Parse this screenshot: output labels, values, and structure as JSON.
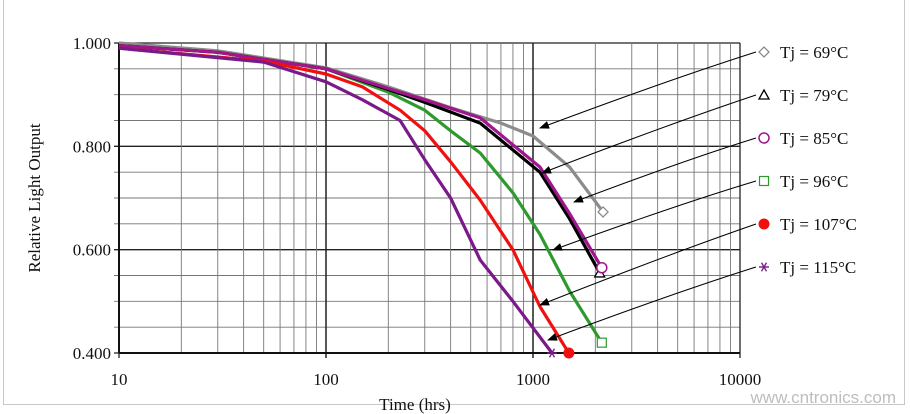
{
  "chart_data": {
    "type": "line",
    "xlabel": "Time (hrs)",
    "ylabel": "Relative Light Output",
    "xscale": "log",
    "xlim": [
      10,
      10000
    ],
    "ylim": [
      0.4,
      1.0
    ],
    "xticks": [
      "10",
      "100",
      "1000",
      "10000"
    ],
    "yticks": [
      "0.400",
      "0.600",
      "0.800",
      "1.000"
    ],
    "grid": true,
    "legend_placement": "right",
    "series": [
      {
        "name": "Tj = 69°C",
        "color": "#8c8c8c",
        "marker": "diamond-open",
        "x": [
          10,
          30,
          100,
          200,
          400,
          700,
          1000,
          1500,
          2180
        ],
        "y": [
          1.0,
          0.985,
          0.952,
          0.915,
          0.875,
          0.845,
          0.82,
          0.76,
          0.673
        ]
      },
      {
        "name": "Tj = 79°C",
        "color": "#000000",
        "marker": "triangle-open",
        "x": [
          10,
          30,
          100,
          200,
          300,
          556,
          1080,
          1500,
          2100
        ],
        "y": [
          0.995,
          0.982,
          0.95,
          0.91,
          0.885,
          0.845,
          0.75,
          0.66,
          0.555
        ]
      },
      {
        "name": "Tj = 85°C",
        "color": "#a0168c",
        "marker": "circle-open",
        "x": [
          10,
          30,
          100,
          200,
          300,
          556,
          1080,
          1500,
          2150
        ],
        "y": [
          0.995,
          0.982,
          0.95,
          0.912,
          0.89,
          0.855,
          0.76,
          0.67,
          0.565
        ]
      },
      {
        "name": "Tj = 96°C",
        "color": "#2e9a2e",
        "marker": "square-open",
        "x": [
          10,
          30,
          100,
          200,
          300,
          400,
          556,
          800,
          1080,
          1500,
          2150
        ],
        "y": [
          0.995,
          0.982,
          0.95,
          0.905,
          0.87,
          0.83,
          0.787,
          0.71,
          0.63,
          0.52,
          0.42
        ]
      },
      {
        "name": "Tj = 107°C",
        "color": "#f01010",
        "marker": "circle-filled",
        "x": [
          10,
          50,
          100,
          150,
          228,
          300,
          400,
          556,
          800,
          1080,
          1490
        ],
        "y": [
          0.99,
          0.965,
          0.94,
          0.915,
          0.87,
          0.83,
          0.77,
          0.696,
          0.6,
          0.49,
          0.4
        ]
      },
      {
        "name": "Tj = 115°C",
        "color": "#7a1a8a",
        "marker": "asterisk",
        "x": [
          10,
          50,
          100,
          150,
          228,
          300,
          400,
          556,
          800,
          1235
        ],
        "y": [
          0.99,
          0.963,
          0.925,
          0.89,
          0.85,
          0.774,
          0.7,
          0.58,
          0.5,
          0.4
        ]
      }
    ]
  },
  "watermark": "www.cntronics.com"
}
